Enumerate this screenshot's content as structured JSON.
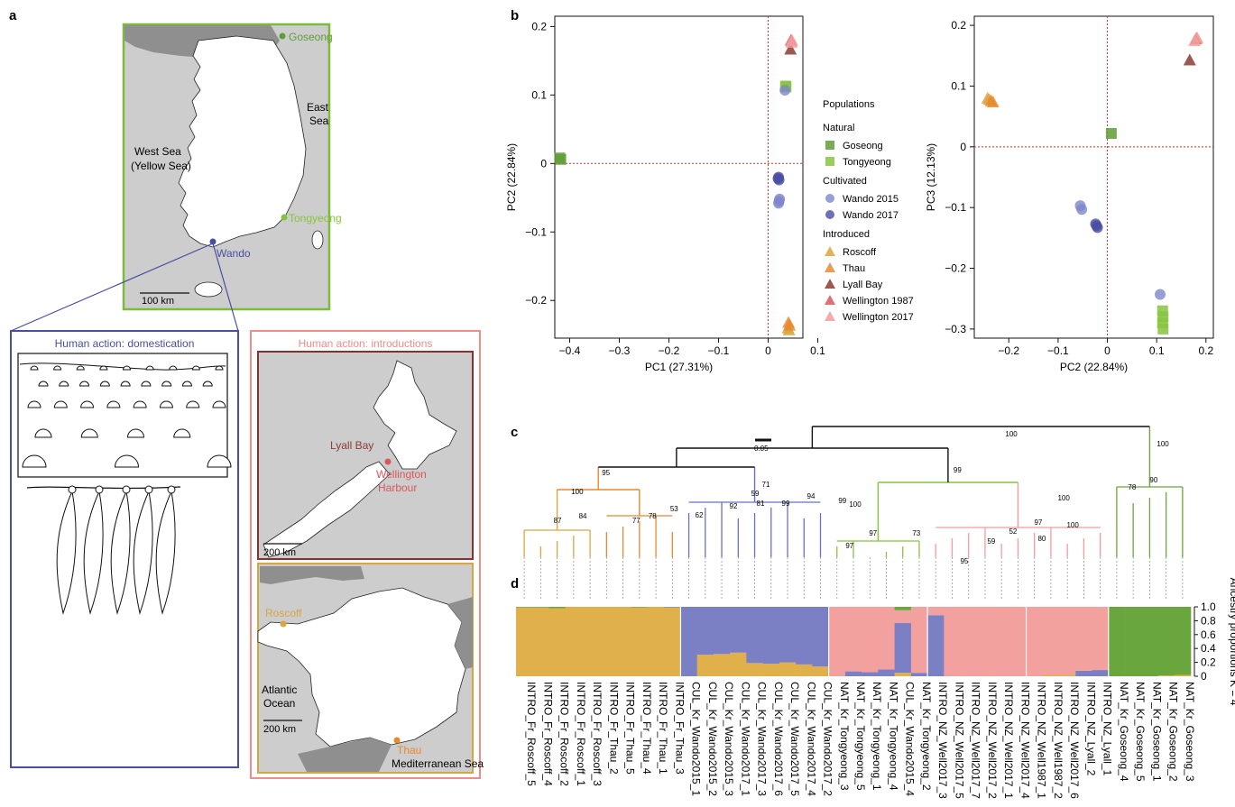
{
  "panels": {
    "a": "a",
    "b": "b",
    "c": "c",
    "d": "d"
  },
  "colors": {
    "goseong": "#5f9e37",
    "tongyeong": "#86c43e",
    "wando2015": "#7d86cc",
    "wando2017": "#4a4ea3",
    "roscoff": "#d9a640",
    "thau": "#e8892e",
    "lyall": "#8b3c34",
    "well1987": "#d9585a",
    "well2017": "#f29c9c",
    "admix_gold": "#e0b04a",
    "admix_purple": "#7b7fc4",
    "admix_pink": "#f3a19e",
    "admix_green": "#6aa63e",
    "korea_frame": "#7cbc3a",
    "nz_frame": "#8b2e2e",
    "fr_frame": "#d6a640",
    "dom_frame": "#4a4ea3",
    "intro_frame": "#f08c89"
  },
  "map": {
    "goseong": "Goseong",
    "east_sea": "East\nSea",
    "west_sea_1": "West Sea",
    "west_sea_2": "(Yellow Sea)",
    "tongyeong": "Tongyeong",
    "wando": "Wando",
    "scale_korea": "100 km",
    "domestication": "Human action: domestication",
    "introductions": "Human action: introductions",
    "lyall_bay": "Lyall Bay",
    "wellington_1": "Wellington",
    "wellington_2": "Harbour",
    "scale_nz": "200 km",
    "roscoff": "Roscoff",
    "atlantic_1": "Atlantic",
    "atlantic_2": "Ocean",
    "scale_fr": "200 km",
    "thau": "Thau",
    "mediterranean": "Mediterranean Sea"
  },
  "legend": {
    "title": "Populations",
    "groups": [
      {
        "name": "Natural",
        "items": [
          {
            "label": "Goseong",
            "shape": "square",
            "color": "#5f9e37"
          },
          {
            "label": "Tongyeong",
            "shape": "square",
            "color": "#86c43e"
          }
        ]
      },
      {
        "name": "Cultivated",
        "items": [
          {
            "label": "Wando 2015",
            "shape": "circle",
            "color": "#7d86cc"
          },
          {
            "label": "Wando 2017",
            "shape": "circle",
            "color": "#4a4ea3"
          }
        ]
      },
      {
        "name": "Introduced",
        "items": [
          {
            "label": "Roscoff",
            "shape": "triangle",
            "color": "#d9a640"
          },
          {
            "label": "Thau",
            "shape": "triangle",
            "color": "#e8892e"
          },
          {
            "label": "Lyall Bay",
            "shape": "triangle",
            "color": "#8b3c34"
          },
          {
            "label": "Wellington 1987",
            "shape": "triangle",
            "color": "#d9585a"
          },
          {
            "label": "Wellington 2017",
            "shape": "triangle",
            "color": "#f29c9c"
          }
        ]
      }
    ]
  },
  "chart_data": [
    {
      "type": "scatter",
      "xlabel": "PC1 (27.31%)",
      "ylabel": "PC2 (22.84%)",
      "xlim": [
        -0.43,
        0.07
      ],
      "ylim": [
        -0.255,
        0.215
      ],
      "xticks": [
        -0.4,
        -0.3,
        -0.2,
        -0.1,
        0,
        0.1
      ],
      "xtick_labels": [
        "−0.4",
        "−0.3",
        "−0.2",
        "−0.1",
        "0",
        "0.1"
      ],
      "yticks": [
        -0.2,
        -0.1,
        0,
        0.1,
        0.2
      ],
      "ytick_labels": [
        "−0.2",
        "−0.1",
        "0",
        "0.1",
        "0.2"
      ],
      "reference_lines": {
        "x": 0,
        "y": 0
      },
      "series": [
        {
          "name": "Goseong",
          "shape": "square",
          "color": "#5f9e37",
          "points": [
            [
              -0.42,
              0.008
            ],
            [
              -0.418,
              0.006
            ]
          ]
        },
        {
          "name": "Tongyeong",
          "shape": "square",
          "color": "#86c43e",
          "points": [
            [
              0.035,
              0.113
            ],
            [
              0.036,
              0.112
            ]
          ]
        },
        {
          "name": "Wando 2015",
          "shape": "circle",
          "color": "#7d86cc",
          "points": [
            [
              0.034,
              0.107
            ],
            [
              0.022,
              -0.055
            ],
            [
              0.021,
              -0.058
            ],
            [
              0.023,
              -0.052
            ]
          ]
        },
        {
          "name": "Wando 2017",
          "shape": "circle",
          "color": "#4a4ea3",
          "points": [
            [
              0.02,
              -0.022
            ],
            [
              0.022,
              -0.024
            ],
            [
              0.021,
              -0.02
            ]
          ]
        },
        {
          "name": "Roscoff",
          "shape": "triangle",
          "color": "#d9a640",
          "points": [
            [
              0.04,
              -0.24
            ],
            [
              0.042,
              -0.243
            ]
          ]
        },
        {
          "name": "Thau",
          "shape": "triangle",
          "color": "#e8892e",
          "points": [
            [
              0.041,
              -0.232
            ],
            [
              0.043,
              -0.236
            ]
          ]
        },
        {
          "name": "Lyall Bay",
          "shape": "triangle",
          "color": "#8b3c34",
          "points": [
            [
              0.045,
              0.167
            ]
          ]
        },
        {
          "name": "Wellington 1987",
          "shape": "triangle",
          "color": "#d9585a",
          "points": [
            [
              0.046,
              0.18
            ]
          ]
        },
        {
          "name": "Wellington 2017",
          "shape": "triangle",
          "color": "#f29c9c",
          "points": [
            [
              0.047,
              0.177
            ],
            [
              0.048,
              0.18
            ]
          ]
        }
      ]
    },
    {
      "type": "scatter",
      "xlabel": "PC2 (22.84%)",
      "ylabel": "PC3 (12.13%)",
      "xlim": [
        -0.27,
        0.215
      ],
      "ylim": [
        -0.315,
        0.215
      ],
      "xticks": [
        -0.2,
        -0.1,
        0,
        0.1,
        0.2
      ],
      "xtick_labels": [
        "−0.2",
        "−0.1",
        "0",
        "0.1",
        "0.2"
      ],
      "yticks": [
        -0.3,
        -0.2,
        -0.1,
        0,
        0.1,
        0.2
      ],
      "ytick_labels": [
        "−0.3",
        "−0.2",
        "−0.1",
        "0",
        "0.1",
        "0.2"
      ],
      "reference_lines": {
        "x": 0,
        "y": 0
      },
      "series": [
        {
          "name": "Goseong",
          "shape": "square",
          "color": "#5f9e37",
          "points": [
            [
              0.008,
              0.022
            ]
          ]
        },
        {
          "name": "Tongyeong",
          "shape": "square",
          "color": "#86c43e",
          "points": [
            [
              0.112,
              -0.27
            ],
            [
              0.113,
              -0.28
            ],
            [
              0.112,
              -0.29
            ],
            [
              0.113,
              -0.3
            ]
          ]
        },
        {
          "name": "Wando 2015",
          "shape": "circle",
          "color": "#7d86cc",
          "points": [
            [
              0.107,
              -0.243
            ],
            [
              -0.055,
              -0.097
            ],
            [
              -0.052,
              -0.103
            ]
          ]
        },
        {
          "name": "Wando 2017",
          "shape": "circle",
          "color": "#4a4ea3",
          "points": [
            [
              -0.024,
              -0.127
            ],
            [
              -0.022,
              -0.13
            ],
            [
              -0.02,
              -0.133
            ]
          ]
        },
        {
          "name": "Roscoff",
          "shape": "triangle",
          "color": "#d9a640",
          "points": [
            [
              -0.243,
              0.08
            ],
            [
              -0.24,
              0.078
            ]
          ]
        },
        {
          "name": "Thau",
          "shape": "triangle",
          "color": "#e8892e",
          "points": [
            [
              -0.236,
              0.076
            ],
            [
              -0.232,
              0.074
            ]
          ]
        },
        {
          "name": "Lyall Bay",
          "shape": "triangle",
          "color": "#8b3c34",
          "points": [
            [
              0.167,
              0.143
            ]
          ]
        },
        {
          "name": "Wellington 1987",
          "shape": "triangle",
          "color": "#d9585a",
          "points": [
            [
              0.18,
              0.178
            ]
          ]
        },
        {
          "name": "Wellington 2017",
          "shape": "triangle",
          "color": "#f29c9c",
          "points": [
            [
              0.177,
              0.175
            ],
            [
              0.182,
              0.18
            ]
          ]
        }
      ]
    }
  ],
  "tree": {
    "scale_label": "0.05",
    "bootstrap": [
      "100",
      "100",
      "95",
      "99",
      "71",
      "100",
      "59",
      "99",
      "94",
      "92",
      "81",
      "62",
      "99",
      "87",
      "84",
      "77",
      "78",
      "53",
      "100",
      "97",
      "73",
      "97",
      "100",
      "97",
      "52",
      "80",
      "100",
      "59",
      "95",
      "90",
      "78"
    ]
  },
  "admixture": {
    "ylabel": "Ancestry proportions K = 4",
    "yticks": [
      "1.0",
      "0.8",
      "0.6",
      "0.4",
      "0.2",
      "0"
    ],
    "samples": [
      "INTRO_Fr_Roscoff_5",
      "INTRO_Fr_Roscoff_4",
      "INTRO_Fr_Roscoff_2",
      "INTRO_Fr_Roscoff_1",
      "INTRO_Fr_Roscoff_3",
      "INTRO_Fr_Thau_2",
      "INTRO_Fr_Thau_5",
      "INTRO_Fr_Thau_4",
      "INTRO_Fr_Thau_1",
      "INTRO_Fr_Thau_3",
      "CUL_Kr_Wando2015_1",
      "CUL_Kr_Wando2015_2",
      "CUL_Kr_Wando2015_3",
      "CUL_Kr_Wando2017_1",
      "CUL_Kr_Wando2017_3",
      "CUL_Kr_Wando2017_6",
      "CUL_Kr_Wando2017_5",
      "CUL_Kr_Wando2017_4",
      "CUL_Kr_Wando2017_2",
      "NAT_Kr_Tongyeong_3",
      "NAT_Kr_Tongyeong_5",
      "NAT_Kr_Tongyeong_1",
      "NAT_Kr_Tongyeong_4",
      "CUL_Kr_Wando2015_4",
      "NAT_Kr_Tongyeong_2",
      "INTRO_NZ_Well2017_3",
      "INTRO_NZ_Well2017_5",
      "INTRO_NZ_Well2017_7",
      "INTRO_NZ_Well2017_2",
      "INTRO_NZ_Well2017_1",
      "INTRO_NZ_Well2017_4",
      "INTRO_NZ_Well1987_1",
      "INTRO_NZ_Well1987_2",
      "INTRO_NZ_Well2017_6",
      "INTRO_NZ_Lyall_2",
      "INTRO_NZ_Lyall_1",
      "NAT_Kr_Goseong_4",
      "NAT_Kr_Goseong_5",
      "NAT_Kr_Goseong_1",
      "NAT_Kr_Goseong_2",
      "NAT_Kr_Goseong_3"
    ],
    "proportions": [
      [
        0.99,
        0.0,
        0.0,
        0.01
      ],
      [
        0.99,
        0.0,
        0.0,
        0.01
      ],
      [
        0.98,
        0.0,
        0.0,
        0.02
      ],
      [
        1.0,
        0.0,
        0.0,
        0.0
      ],
      [
        1.0,
        0.0,
        0.0,
        0.0
      ],
      [
        1.0,
        0.0,
        0.0,
        0.0
      ],
      [
        1.0,
        0.0,
        0.0,
        0.0
      ],
      [
        0.99,
        0.0,
        0.0,
        0.01
      ],
      [
        1.0,
        0.0,
        0.0,
        0.0
      ],
      [
        0.99,
        0.01,
        0.0,
        0.0
      ],
      [
        0.0,
        1.0,
        0.0,
        0.0
      ],
      [
        0.31,
        0.69,
        0.0,
        0.0
      ],
      [
        0.32,
        0.68,
        0.0,
        0.0
      ],
      [
        0.34,
        0.66,
        0.0,
        0.0
      ],
      [
        0.19,
        0.81,
        0.0,
        0.0
      ],
      [
        0.18,
        0.82,
        0.0,
        0.0
      ],
      [
        0.2,
        0.8,
        0.0,
        0.0
      ],
      [
        0.17,
        0.83,
        0.0,
        0.0
      ],
      [
        0.14,
        0.86,
        0.0,
        0.0
      ],
      [
        0.0,
        0.0,
        1.0,
        0.0
      ],
      [
        0.0,
        0.07,
        0.93,
        0.0
      ],
      [
        0.0,
        0.06,
        0.94,
        0.0
      ],
      [
        0.0,
        0.1,
        0.9,
        0.0
      ],
      [
        0.05,
        0.72,
        0.18,
        0.05
      ],
      [
        0.0,
        0.05,
        0.95,
        0.0
      ],
      [
        0.0,
        0.88,
        0.12,
        0.0
      ],
      [
        0.0,
        0.0,
        1.0,
        0.0
      ],
      [
        0.0,
        0.0,
        1.0,
        0.0
      ],
      [
        0.0,
        0.0,
        1.0,
        0.0
      ],
      [
        0.0,
        0.0,
        1.0,
        0.0
      ],
      [
        0.0,
        0.0,
        1.0,
        0.0
      ],
      [
        0.0,
        0.0,
        1.0,
        0.0
      ],
      [
        0.02,
        0.0,
        0.98,
        0.0
      ],
      [
        0.02,
        0.0,
        0.98,
        0.0
      ],
      [
        0.0,
        0.08,
        0.92,
        0.0
      ],
      [
        0.0,
        0.09,
        0.91,
        0.0
      ],
      [
        0.0,
        0.0,
        0.0,
        1.0
      ],
      [
        0.0,
        0.0,
        0.0,
        1.0
      ],
      [
        0.0,
        0.0,
        0.0,
        1.0
      ],
      [
        0.01,
        0.0,
        0.0,
        0.99
      ],
      [
        0.02,
        0.0,
        0.0,
        0.98
      ]
    ],
    "components": [
      "#e0b04a",
      "#7b7fc4",
      "#f3a19e",
      "#6aa63e"
    ]
  }
}
